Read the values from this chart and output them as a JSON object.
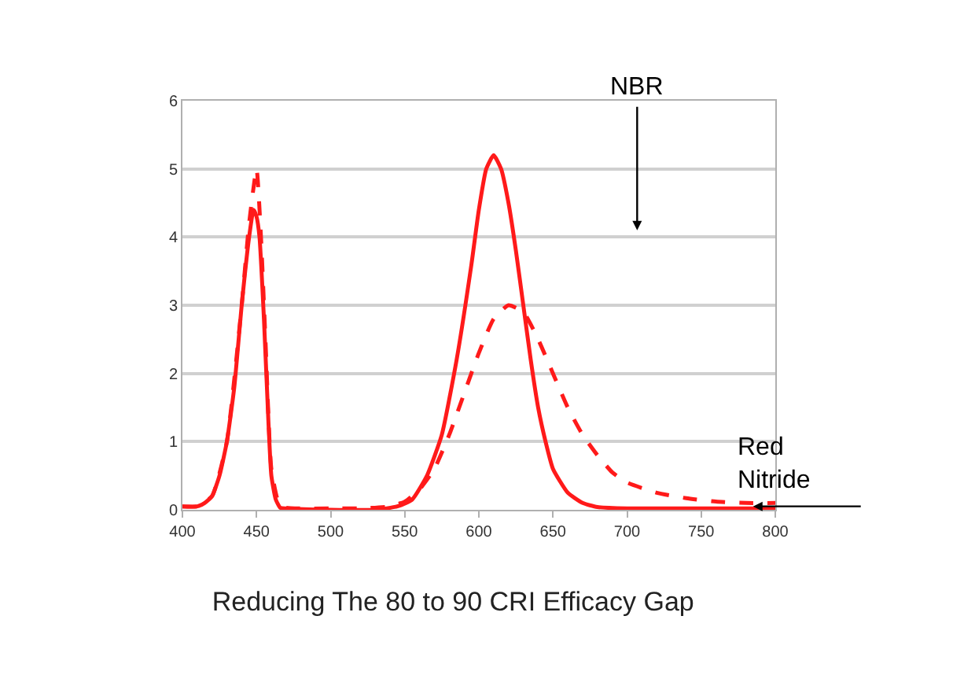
{
  "chart_data": {
    "type": "line",
    "title": "Reducing The 80 to 90 CRI Efficacy Gap",
    "xlim": [
      400,
      800
    ],
    "xticks": [
      400,
      450,
      500,
      550,
      600,
      650,
      700,
      750,
      800
    ],
    "ylim": [
      0,
      6
    ],
    "yticks": [
      0,
      1,
      2,
      3,
      4,
      5,
      6
    ],
    "grid": "y",
    "marker": "none",
    "series": [
      {
        "color": "#ff1a1a",
        "line_style": "solid",
        "x": [
          400,
          410,
          415,
          420,
          425,
          430,
          435,
          440,
          445,
          448,
          450,
          452,
          455,
          458,
          460,
          463,
          466,
          470,
          500,
          530,
          545,
          555,
          565,
          575,
          585,
          595,
          600,
          605,
          610,
          615,
          620,
          625,
          630,
          635,
          640,
          645,
          650,
          660,
          670,
          680,
          700,
          750,
          800
        ],
        "values": [
          0.05,
          0.05,
          0.1,
          0.2,
          0.5,
          1.0,
          1.8,
          3.0,
          4.0,
          4.4,
          4.3,
          4.0,
          2.8,
          1.3,
          0.5,
          0.15,
          0.03,
          0.02,
          0.0,
          0.0,
          0.05,
          0.15,
          0.5,
          1.1,
          2.2,
          3.6,
          4.4,
          5.0,
          5.2,
          5.0,
          4.5,
          3.8,
          3.0,
          2.2,
          1.5,
          1.0,
          0.6,
          0.25,
          0.1,
          0.04,
          0.02,
          0.02,
          0.02
        ]
      },
      {
        "color": "#ff1a1a",
        "line_style": "dashed",
        "x": [
          400,
          410,
          420,
          430,
          440,
          445,
          450,
          453,
          456,
          460,
          465,
          470,
          500,
          520,
          540,
          550,
          560,
          570,
          580,
          590,
          600,
          610,
          620,
          630,
          640,
          650,
          660,
          670,
          680,
          690,
          700,
          720,
          740,
          760,
          780,
          800
        ],
        "values": [
          0.05,
          0.05,
          0.2,
          1.0,
          3.0,
          4.2,
          5.0,
          4.0,
          2.5,
          0.6,
          0.1,
          0.03,
          0.02,
          0.02,
          0.05,
          0.12,
          0.3,
          0.6,
          1.1,
          1.7,
          2.3,
          2.8,
          3.0,
          2.9,
          2.5,
          2.0,
          1.5,
          1.1,
          0.8,
          0.55,
          0.4,
          0.25,
          0.17,
          0.12,
          0.1,
          0.1
        ]
      }
    ],
    "annotations": [
      "NBR",
      {
        "text": "Red\nNitride",
        "x": 785,
        "y": 0.05
      }
    ]
  }
}
